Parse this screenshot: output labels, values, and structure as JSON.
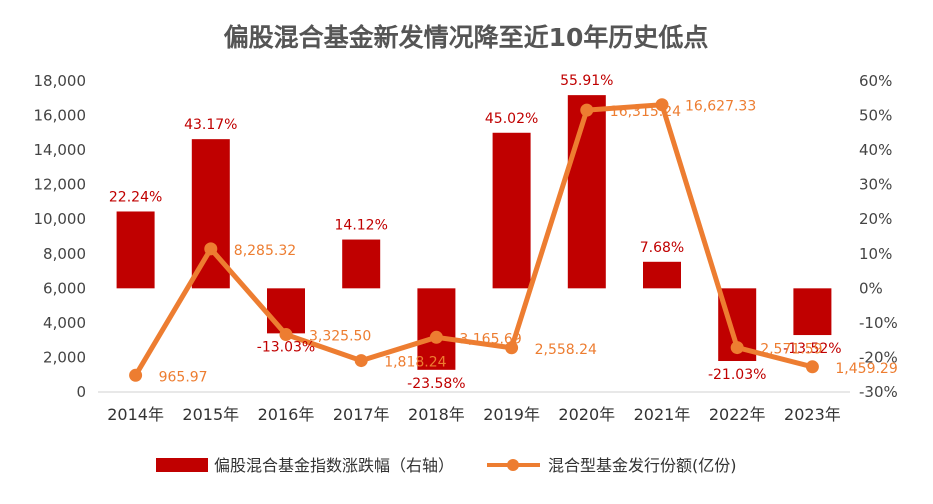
{
  "chart_data": {
    "type": "bar+line",
    "title": "偏股混合基金新发情况降至近10年历史低点",
    "categories": [
      "2014年",
      "2015年",
      "2016年",
      "2017年",
      "2018年",
      "2019年",
      "2020年",
      "2021年",
      "2022年",
      "2023年"
    ],
    "series": [
      {
        "name": "偏股混合基金指数涨跌幅（右轴）",
        "type": "bar",
        "axis": "right",
        "values": [
          22.24,
          43.17,
          -13.03,
          14.12,
          -23.58,
          45.02,
          55.91,
          7.68,
          -21.03,
          -13.52
        ],
        "labels": [
          "22.24%",
          "43.17%",
          "-13.03%",
          "14.12%",
          "-23.58%",
          "45.02%",
          "55.91%",
          "7.68%",
          "-21.03%",
          "-13.52%"
        ],
        "color": "#C00000"
      },
      {
        "name": "混合型基金发行份额(亿份)",
        "type": "line",
        "axis": "left",
        "values": [
          965.97,
          8285.32,
          3325.5,
          1818.24,
          3165.69,
          2558.24,
          16315.24,
          16627.33,
          2571.59,
          1459.29
        ],
        "labels": [
          "965.97",
          "8,285.32",
          "3,325.50",
          "1,818.24",
          "3,165.69",
          "2,558.24",
          "16,315.24",
          "16,627.33",
          "2,571.59",
          "1,459.29"
        ],
        "color": "#ED7D31"
      }
    ],
    "left_axis": {
      "min": 0,
      "max": 18000,
      "ticks": [
        0,
        2000,
        4000,
        6000,
        8000,
        10000,
        12000,
        14000,
        16000,
        18000
      ],
      "tick_labels": [
        "0",
        "2,000",
        "4,000",
        "6,000",
        "8,000",
        "10,000",
        "12,000",
        "14,000",
        "16,000",
        "18,000"
      ]
    },
    "right_axis": {
      "min": -30,
      "max": 60,
      "ticks": [
        -30,
        -20,
        -10,
        0,
        10,
        20,
        30,
        40,
        50,
        60
      ],
      "tick_labels": [
        "-30%",
        "-20%",
        "-10%",
        "0%",
        "10%",
        "20%",
        "30%",
        "40%",
        "50%",
        "60%"
      ]
    },
    "grid": false,
    "legend_position": "bottom"
  }
}
